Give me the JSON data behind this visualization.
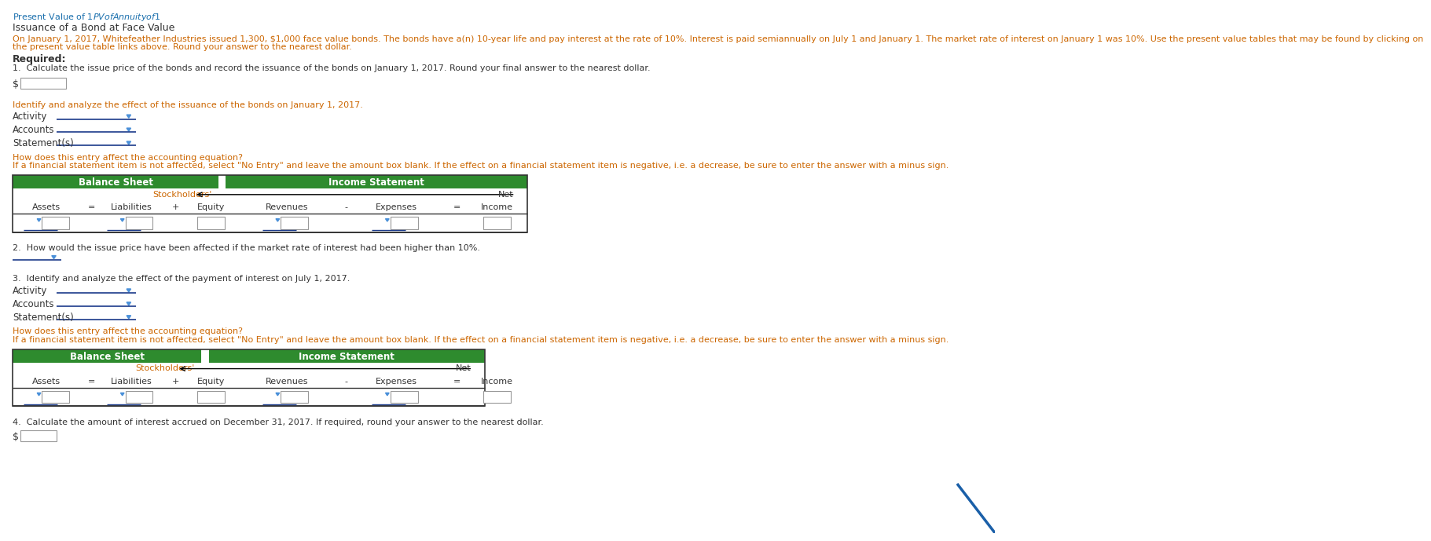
{
  "bg_color": "#ffffff",
  "header_link_color": "#1a6fad",
  "text_color": "#333333",
  "orange_text_color": "#cc6600",
  "green_header_bg": "#2e8b2e",
  "table_border_color": "#888888",
  "dropdown_arrow_color": "#4a90d9",
  "line_color": "#1a3a8a",
  "title_line1": "Present Value of $1 PV of Annuity of $1",
  "subtitle": "Issuance of a Bond at Face Value",
  "problem_text_1": "On January 1, 2017, Whitefeather Industries issued 1,300, $1,000 face value bonds. The bonds have a(n) 10-year life and pay interest at the rate of 10%. Interest is paid semiannually on July 1 and January 1. The market rate of interest on January 1 was 10%. Use the present value tables that may be found by clicking on",
  "problem_text_2": "the present value table links above. Round your answer to the nearest dollar.",
  "required_label": "Required:",
  "q1_text": "1.  Calculate the issue price of the bonds and record the issuance of the bonds on January 1, 2017. Round your final answer to the nearest dollar.",
  "identify_text": "Identify and analyze the effect of the issuance of the bonds on January 1, 2017.",
  "activity_label": "Activity",
  "accounts_label": "Accounts",
  "statements_label": "Statement(s)",
  "how_affect_text": "How does this entry affect the accounting equation?",
  "if_financial_text": "If a financial statement item is not affected, select \"No Entry\" and leave the amount box blank. If the effect on a financial statement item is negative, i.e. a decrease, be sure to enter the answer with a minus sign.",
  "bs_label": "Balance Sheet",
  "is_label": "Income Statement",
  "stockholders_label": "Stockholders'",
  "equity_label": "Equity",
  "assets_label": "Assets",
  "liabilities_label": "Liabilities",
  "revenues_label": "Revenues",
  "expenses_label": "Expenses",
  "net_label": "Net",
  "income_label": "Income",
  "equals_sign": "=",
  "plus_sign": "+",
  "minus_sign": "-",
  "q2_text": "2.  How would the issue price have been affected if the market rate of interest had been higher than 10%.",
  "q3_text": "3.  Identify and analyze the effect of the payment of interest on July 1, 2017.",
  "how_affect3_text": "How does this entry affect the accounting equation?",
  "if_financial3_text": "If a financial statement item is not affected, select \"No Entry\" and leave the amount box blank. If the effect on a financial statement item is negative, i.e. a decrease, be sure to enter the answer with a minus sign.",
  "q4_text": "4.  Calculate the amount of interest accrued on December 31, 2017. If required, round your answer to the nearest dollar.",
  "blue_diag_color": "#1a5fa8",
  "gap_color": "#ffffff"
}
